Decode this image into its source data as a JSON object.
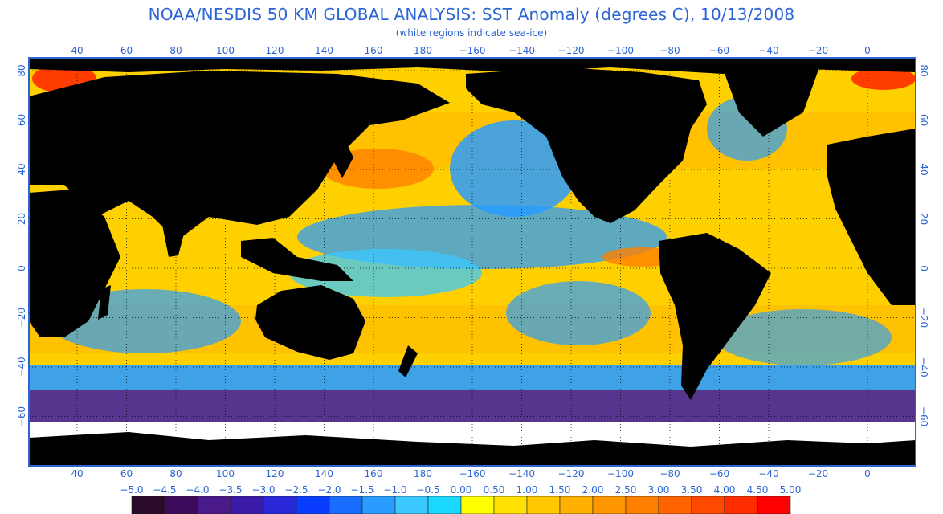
{
  "title": "NOAA/NESDIS 50 KM GLOBAL ANALYSIS: SST Anomaly (degrees C), 10/13/2008",
  "subtitle": "(white regions indicate sea-ice)",
  "axes": {
    "lon_ticks": [
      "40",
      "60",
      "80",
      "100",
      "120",
      "140",
      "160",
      "180",
      "−160",
      "−140",
      "−120",
      "−100",
      "−80",
      "−60",
      "−40",
      "−20",
      "0"
    ],
    "lat_ticks": [
      "80",
      "60",
      "40",
      "20",
      "0",
      "−20",
      "−40",
      "−60"
    ]
  },
  "colorbar": {
    "labels": [
      "−5.0",
      "−4.5",
      "−4.0",
      "−3.5",
      "−3.0",
      "−2.5",
      "−2.0",
      "−1.5",
      "−1.0",
      "−0.5",
      "0.00",
      "0.50",
      "1.00",
      "1.50",
      "2.00",
      "2.50",
      "3.00",
      "3.50",
      "4.00",
      "4.50",
      "5.00"
    ],
    "colors": [
      "#000000",
      "#2a0a2a",
      "#3d0a5c",
      "#4a1a8a",
      "#3a1aa8",
      "#2828d8",
      "#0a3cff",
      "#1a6cff",
      "#2a9cff",
      "#3ac8ff",
      "#1ad8ff",
      "#ffff00",
      "#ffe000",
      "#ffc800",
      "#ffb000",
      "#ff9800",
      "#ff8000",
      "#ff6400",
      "#ff4800",
      "#ff2c00",
      "#ff0000"
    ]
  },
  "colors": {
    "land": "#000000",
    "ice": "#ffffff",
    "frame": "#2a64d6",
    "grid": "#000000"
  }
}
